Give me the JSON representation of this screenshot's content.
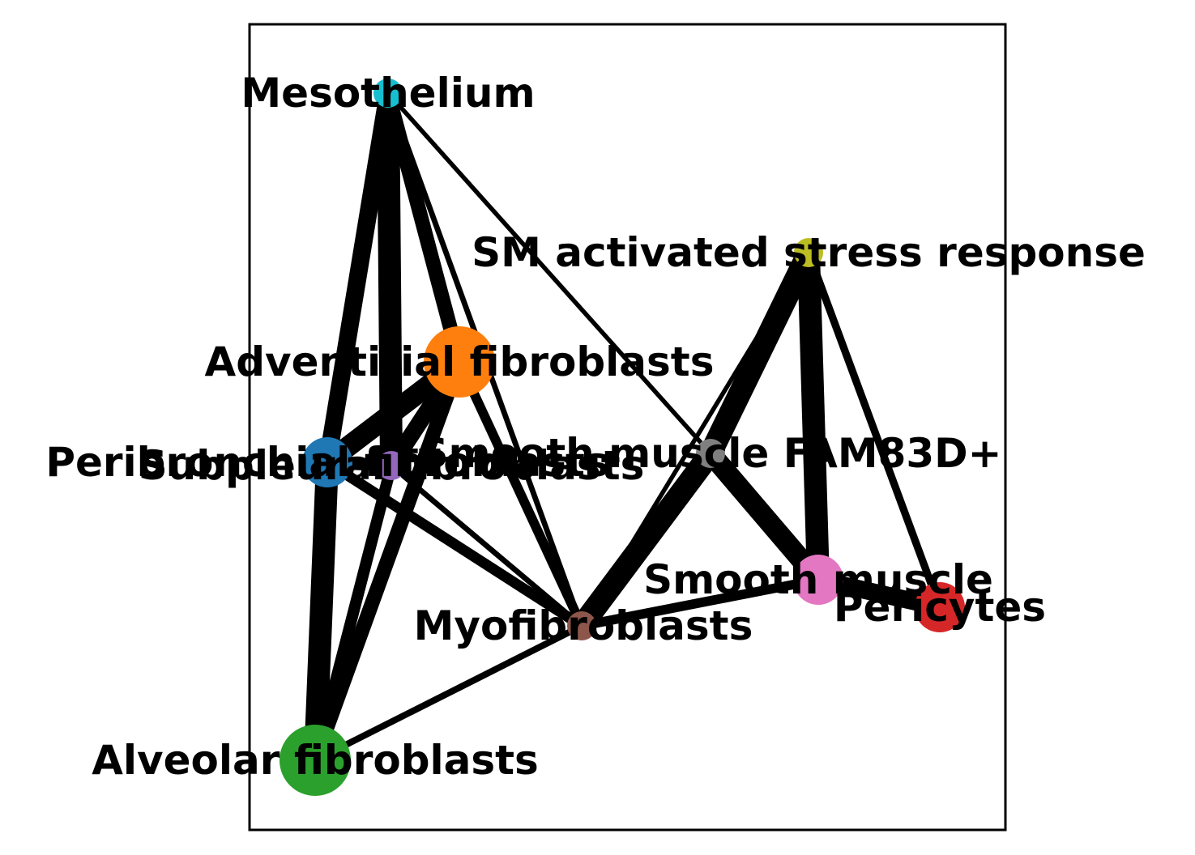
{
  "graph": {
    "type": "network",
    "frame": true,
    "nodes": [
      {
        "id": "mesothelium",
        "label": "Mesothelium",
        "color": "#17becf",
        "size": "small"
      },
      {
        "id": "sm_stress",
        "label": "SM activated stress response",
        "color": "#bcbd22",
        "size": "small"
      },
      {
        "id": "adventitial",
        "label": "Adventitial fibroblasts",
        "color": "#ff7f0e",
        "size": "large"
      },
      {
        "id": "peribronchial",
        "label": "Peribronchial fibroblasts",
        "color": "#1f77b4",
        "size": "medium"
      },
      {
        "id": "subpleural",
        "label": "Subpleural fibroblasts",
        "color": "#9467bd",
        "size": "small"
      },
      {
        "id": "sm_fam83d",
        "label": "Smooth muscle FAM83D+",
        "color": "#7f7f7f",
        "size": "small"
      },
      {
        "id": "smooth_muscle",
        "label": "Smooth muscle",
        "color": "#e377c2",
        "size": "medium"
      },
      {
        "id": "pericytes",
        "label": "Pericytes",
        "color": "#d62728",
        "size": "medium"
      },
      {
        "id": "myofibroblasts",
        "label": "Myofibroblasts",
        "color": "#8c564b",
        "size": "small"
      },
      {
        "id": "alveolar",
        "label": "Alveolar fibroblasts",
        "color": "#2ca02c",
        "size": "large"
      }
    ],
    "edges": [
      {
        "source": "mesothelium",
        "target": "peribronchial",
        "weight": 0.75
      },
      {
        "source": "mesothelium",
        "target": "subpleural",
        "weight": 1.0
      },
      {
        "source": "mesothelium",
        "target": "adventitial",
        "weight": 0.6
      },
      {
        "source": "mesothelium",
        "target": "myofibroblasts",
        "weight": 0.15
      },
      {
        "source": "mesothelium",
        "target": "sm_fam83d",
        "weight": 0.1
      },
      {
        "source": "adventitial",
        "target": "peribronchial",
        "weight": 0.9
      },
      {
        "source": "adventitial",
        "target": "subpleural",
        "weight": 0.7
      },
      {
        "source": "adventitial",
        "target": "alveolar",
        "weight": 0.6
      },
      {
        "source": "adventitial",
        "target": "myofibroblasts",
        "weight": 0.35
      },
      {
        "source": "peribronchial",
        "target": "alveolar",
        "weight": 1.0
      },
      {
        "source": "peribronchial",
        "target": "subpleural",
        "weight": 0.5
      },
      {
        "source": "peribronchial",
        "target": "myofibroblasts",
        "weight": 0.4
      },
      {
        "source": "subpleural",
        "target": "alveolar",
        "weight": 0.45
      },
      {
        "source": "subpleural",
        "target": "myofibroblasts",
        "weight": 0.15
      },
      {
        "source": "alveolar",
        "target": "myofibroblasts",
        "weight": 0.2
      },
      {
        "source": "myofibroblasts",
        "target": "sm_fam83d",
        "weight": 1.0
      },
      {
        "source": "myofibroblasts",
        "target": "smooth_muscle",
        "weight": 0.35
      },
      {
        "source": "myofibroblasts",
        "target": "sm_stress",
        "weight": 0.1
      },
      {
        "source": "sm_fam83d",
        "target": "sm_stress",
        "weight": 1.0
      },
      {
        "source": "sm_fam83d",
        "target": "smooth_muscle",
        "weight": 0.9
      },
      {
        "source": "sm_stress",
        "target": "smooth_muscle",
        "weight": 1.0
      },
      {
        "source": "sm_stress",
        "target": "pericytes",
        "weight": 0.25
      },
      {
        "source": "smooth_muscle",
        "target": "pericytes",
        "weight": 0.75
      }
    ]
  }
}
